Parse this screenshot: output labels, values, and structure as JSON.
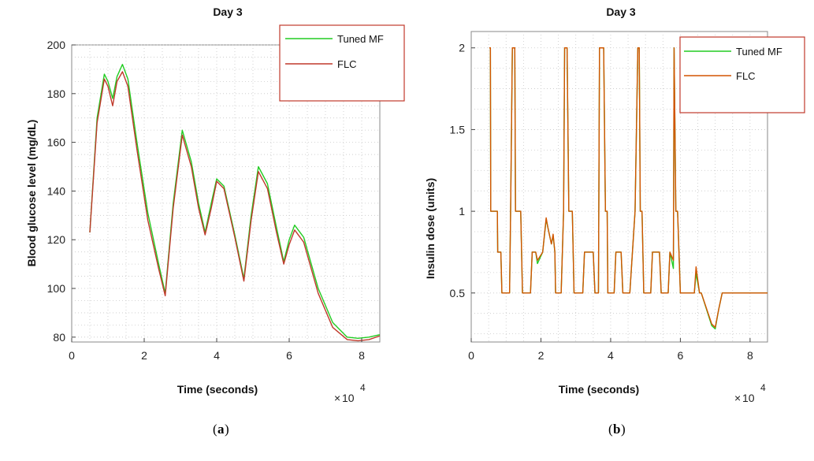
{
  "chart_data": [
    {
      "type": "line",
      "title": "Day 3",
      "xlabel": "Time (seconds)",
      "ylabel": "Blood glucose level (mg/dL)",
      "x_exponent_label": "10",
      "x_exponent_power": "4",
      "xlim": [
        0,
        8.5
      ],
      "ylim": [
        78,
        200
      ],
      "xticks": [
        "0",
        "2",
        "4",
        "6",
        "8"
      ],
      "yticks": [
        "80",
        "100",
        "120",
        "140",
        "160",
        "180",
        "200"
      ],
      "grid": true,
      "legend_position": "top-right",
      "caption": "a",
      "series": [
        {
          "name": "Tuned MF",
          "color": "#22cc22",
          "x": [
            0.5,
            0.7,
            0.9,
            1.0,
            1.13,
            1.25,
            1.4,
            1.55,
            1.8,
            2.1,
            2.4,
            2.58,
            2.8,
            3.05,
            3.3,
            3.5,
            3.68,
            3.85,
            4.0,
            4.2,
            4.5,
            4.75,
            4.95,
            5.15,
            5.4,
            5.65,
            5.85,
            6.0,
            6.15,
            6.4,
            6.8,
            7.2,
            7.6,
            7.9,
            8.2,
            8.5
          ],
          "y": [
            123,
            170,
            188,
            185,
            178,
            187,
            192,
            186,
            160,
            131,
            110,
            98,
            135,
            165,
            152,
            135,
            123,
            135,
            145,
            142,
            122,
            104,
            130,
            150,
            143,
            125,
            111,
            120,
            126,
            121,
            100,
            86,
            80,
            79.5,
            80,
            81
          ]
        },
        {
          "name": "FLC",
          "color": "#c0392b",
          "x": [
            0.5,
            0.7,
            0.9,
            1.0,
            1.13,
            1.25,
            1.4,
            1.55,
            1.8,
            2.1,
            2.4,
            2.58,
            2.8,
            3.05,
            3.3,
            3.5,
            3.68,
            3.85,
            4.0,
            4.2,
            4.5,
            4.75,
            4.95,
            5.15,
            5.4,
            5.65,
            5.85,
            6.0,
            6.15,
            6.4,
            6.8,
            7.2,
            7.6,
            7.9,
            8.2,
            8.5
          ],
          "y": [
            123,
            168,
            186,
            183,
            175,
            185,
            189,
            183,
            157,
            128,
            108,
            97,
            133,
            163,
            150,
            133,
            122,
            133,
            144,
            141,
            121,
            103,
            128,
            148,
            141,
            123,
            110,
            118,
            124,
            119,
            98,
            84,
            79,
            78.5,
            79,
            80.5
          ]
        }
      ]
    },
    {
      "type": "line",
      "title": "Day 3",
      "xlabel": "Time (seconds)",
      "ylabel": "Insulin dose (units)",
      "x_exponent_label": "10",
      "x_exponent_power": "4",
      "xlim": [
        0,
        8.5
      ],
      "ylim": [
        0.2,
        2.1
      ],
      "xticks": [
        "0",
        "2",
        "4",
        "6",
        "8"
      ],
      "yticks": [
        "0.5",
        "1",
        "1.5",
        "2"
      ],
      "grid": true,
      "legend_position": "top-right",
      "caption": "b",
      "series": [
        {
          "name": "Tuned MF",
          "color": "#22cc22",
          "x": [
            0.52,
            0.52,
            0.55,
            0.56,
            0.75,
            0.76,
            0.85,
            0.88,
            1.1,
            1.13,
            1.18,
            1.25,
            1.27,
            1.42,
            1.47,
            1.7,
            1.75,
            1.85,
            1.9,
            2.05,
            2.15,
            2.2,
            2.3,
            2.35,
            2.4,
            2.42,
            2.5,
            2.58,
            2.65,
            2.68,
            2.75,
            2.8,
            2.9,
            2.95,
            3.2,
            3.25,
            3.5,
            3.55,
            3.65,
            3.68,
            3.8,
            3.85,
            3.9,
            3.92,
            4.1,
            4.15,
            4.3,
            4.35,
            4.5,
            4.55,
            4.7,
            4.78,
            4.82,
            4.85,
            4.9,
            4.95,
            5.15,
            5.2,
            5.4,
            5.45,
            5.65,
            5.7,
            5.8,
            5.82,
            5.87,
            5.92,
            6.0,
            6.05,
            6.4,
            6.45,
            6.55,
            6.6,
            6.9,
            7.0,
            7.1,
            7.2,
            8.5
          ],
          "y": [
            2.0,
            2.0,
            2.0,
            1.0,
            1.0,
            0.75,
            0.75,
            0.5,
            0.5,
            1.0,
            2.0,
            2.0,
            1.0,
            1.0,
            0.5,
            0.5,
            0.75,
            0.75,
            0.68,
            0.75,
            0.95,
            0.9,
            0.8,
            0.85,
            0.75,
            0.5,
            0.5,
            0.5,
            1.0,
            2.0,
            2.0,
            1.0,
            1.0,
            0.5,
            0.5,
            0.75,
            0.75,
            0.5,
            0.5,
            2.0,
            2.0,
            1.0,
            1.0,
            0.5,
            0.5,
            0.75,
            0.75,
            0.5,
            0.5,
            0.5,
            1.0,
            2.0,
            2.0,
            1.0,
            1.0,
            0.5,
            0.5,
            0.75,
            0.75,
            0.5,
            0.5,
            0.75,
            0.65,
            2.0,
            1.0,
            1.0,
            0.5,
            0.5,
            0.5,
            0.62,
            0.5,
            0.5,
            0.3,
            0.28,
            0.4,
            0.5,
            0.5
          ]
        },
        {
          "name": "FLC",
          "color": "#d35400",
          "x": [
            0.52,
            0.52,
            0.55,
            0.56,
            0.75,
            0.76,
            0.85,
            0.88,
            1.1,
            1.13,
            1.18,
            1.25,
            1.27,
            1.42,
            1.47,
            1.7,
            1.75,
            1.85,
            1.9,
            2.05,
            2.15,
            2.2,
            2.3,
            2.35,
            2.4,
            2.42,
            2.5,
            2.58,
            2.65,
            2.68,
            2.75,
            2.8,
            2.9,
            2.95,
            3.2,
            3.25,
            3.5,
            3.55,
            3.65,
            3.68,
            3.8,
            3.85,
            3.9,
            3.92,
            4.1,
            4.15,
            4.3,
            4.35,
            4.5,
            4.55,
            4.7,
            4.78,
            4.82,
            4.85,
            4.9,
            4.95,
            5.15,
            5.2,
            5.4,
            5.45,
            5.65,
            5.7,
            5.8,
            5.82,
            5.87,
            5.92,
            6.0,
            6.05,
            6.4,
            6.45,
            6.55,
            6.6,
            6.9,
            7.0,
            7.1,
            7.2,
            8.5
          ],
          "y": [
            2.0,
            2.0,
            2.0,
            1.0,
            1.0,
            0.75,
            0.75,
            0.5,
            0.5,
            1.0,
            2.0,
            2.0,
            1.0,
            1.0,
            0.5,
            0.5,
            0.75,
            0.75,
            0.7,
            0.75,
            0.96,
            0.9,
            0.8,
            0.86,
            0.75,
            0.5,
            0.5,
            0.5,
            1.0,
            2.0,
            2.0,
            1.0,
            1.0,
            0.5,
            0.5,
            0.75,
            0.75,
            0.5,
            0.5,
            2.0,
            2.0,
            1.0,
            1.0,
            0.5,
            0.5,
            0.75,
            0.75,
            0.5,
            0.5,
            0.5,
            1.0,
            2.0,
            2.0,
            1.0,
            1.0,
            0.5,
            0.5,
            0.75,
            0.75,
            0.5,
            0.5,
            0.75,
            0.7,
            2.0,
            1.0,
            1.0,
            0.5,
            0.5,
            0.5,
            0.66,
            0.5,
            0.5,
            0.31,
            0.29,
            0.4,
            0.5,
            0.5
          ]
        }
      ]
    }
  ]
}
